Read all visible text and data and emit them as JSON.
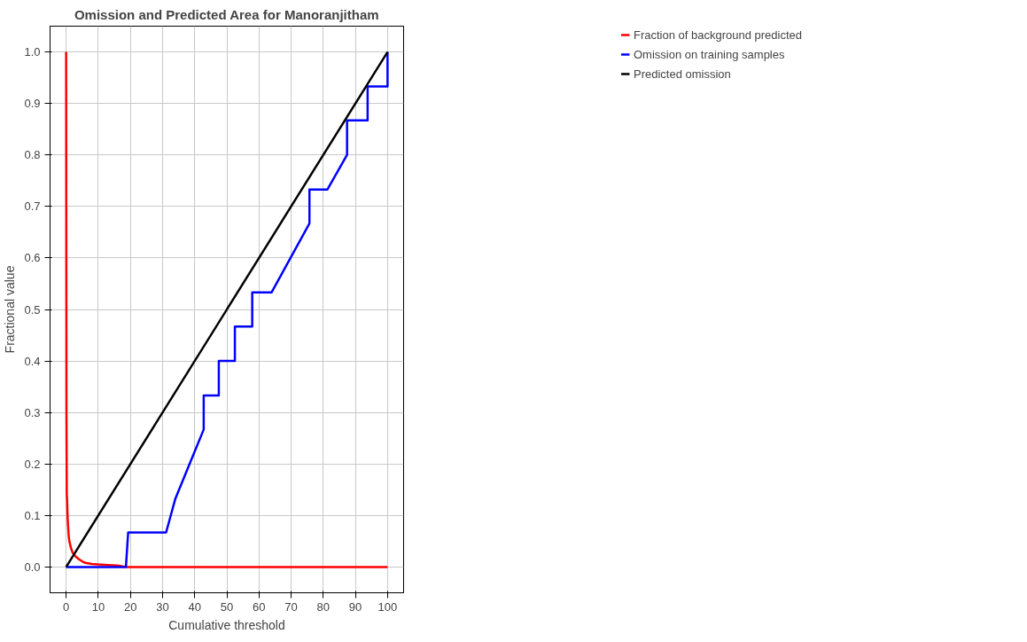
{
  "chart_data": {
    "type": "line",
    "title": "Omission and Predicted Area for Manoranjitham",
    "xlabel": "Cumulative threshold",
    "ylabel": "Fractional value",
    "series": [
      {
        "name": "Fraction of background predicted",
        "color": "#ff0000",
        "x": [
          0,
          0.1,
          0.2,
          0.3,
          0.5,
          0.8,
          1,
          1.5,
          2,
          3,
          4,
          5,
          6,
          8,
          10,
          13,
          16,
          18,
          19,
          30,
          50,
          75,
          100
        ],
        "values": [
          1,
          0.3,
          0.14,
          0.13,
          0.09,
          0.06,
          0.05,
          0.037,
          0.028,
          0.02,
          0.015,
          0.011,
          0.008,
          0.006,
          0.005,
          0.004,
          0.003,
          0.001,
          0,
          0,
          0,
          0,
          0
        ]
      },
      {
        "name": "Omission on training samples",
        "color": "#0000ff",
        "x": [
          0,
          18.6,
          19.3,
          31.1,
          34,
          42.8,
          42.8,
          47.5,
          47.5,
          52.5,
          52.5,
          57.9,
          57.9,
          63.9,
          75.7,
          75.7,
          81.3,
          87.4,
          87.4,
          93.8,
          93.8,
          100,
          100
        ],
        "values": [
          0,
          0,
          0.067,
          0.067,
          0.133,
          0.267,
          0.333,
          0.333,
          0.4,
          0.4,
          0.467,
          0.467,
          0.533,
          0.533,
          0.667,
          0.733,
          0.733,
          0.8,
          0.867,
          0.867,
          0.933,
          0.933,
          1
        ]
      },
      {
        "name": "Predicted omission",
        "color": "#000000",
        "x": [
          0,
          100
        ],
        "values": [
          0,
          1
        ]
      }
    ],
    "xlim": [
      -5,
      105
    ],
    "ylim": [
      -0.05,
      1.05
    ],
    "xticks": [
      0,
      10,
      20,
      30,
      40,
      50,
      60,
      70,
      80,
      90,
      100
    ],
    "yticks": [
      {
        "value": 0,
        "label": "0.0"
      },
      {
        "value": 0.1,
        "label": "0.1"
      },
      {
        "value": 0.2,
        "label": "0.2"
      },
      {
        "value": 0.3,
        "label": "0.3"
      },
      {
        "value": 0.4,
        "label": "0.4"
      },
      {
        "value": 0.5,
        "label": "0.5"
      },
      {
        "value": 0.6,
        "label": "0.6"
      },
      {
        "value": 0.7,
        "label": "0.7"
      },
      {
        "value": 0.8,
        "label": "0.8"
      },
      {
        "value": 0.9,
        "label": "0.9"
      },
      {
        "value": 1,
        "label": "1.0"
      }
    ],
    "grid": true,
    "legend": "top right",
    "marker": "none",
    "line_style": "solid"
  }
}
